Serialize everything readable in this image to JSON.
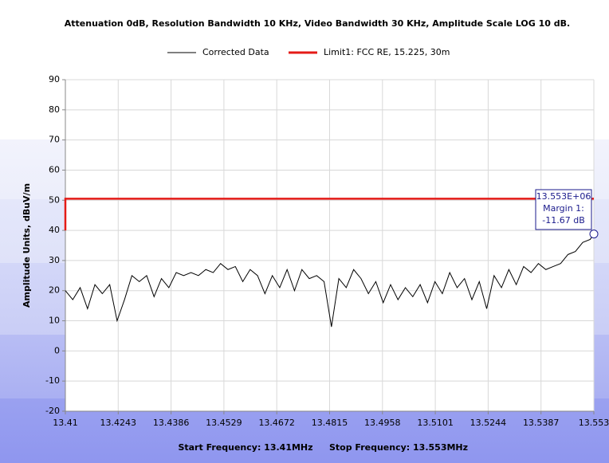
{
  "chart_data": {
    "type": "line",
    "title": "Attenuation 0dB, Resolution Bandwidth 10 KHz, Video Bandwidth 30 KHz, Amplitude Scale LOG 10 dB.",
    "ylabel": "Amplitude Units, dBuV/m",
    "footer": [
      "Start Frequency: 13.41MHz",
      "Stop Frequency: 13.553MHz"
    ],
    "annotation": [
      "13.553E+06",
      "Margin 1:",
      "-11.67 dB"
    ],
    "xlim": [
      13.41,
      13.553
    ],
    "xticks": [
      13.41,
      13.4243,
      13.4386,
      13.4529,
      13.4672,
      13.4815,
      13.4958,
      13.5101,
      13.5244,
      13.5387,
      13.553
    ],
    "ylim": [
      -20,
      90
    ],
    "yticks": [
      -20,
      -10,
      0,
      10,
      20,
      30,
      40,
      50,
      60,
      70,
      80,
      90
    ],
    "grid": true,
    "series": [
      {
        "name": "Corrected Data",
        "color": "#000000",
        "x": [
          13.41,
          13.412,
          13.414,
          13.416,
          13.418,
          13.42,
          13.422,
          13.424,
          13.426,
          13.428,
          13.43,
          13.432,
          13.434,
          13.436,
          13.438,
          13.44,
          13.442,
          13.444,
          13.446,
          13.448,
          13.45,
          13.452,
          13.454,
          13.456,
          13.458,
          13.46,
          13.462,
          13.464,
          13.466,
          13.468,
          13.47,
          13.472,
          13.474,
          13.476,
          13.478,
          13.48,
          13.482,
          13.484,
          13.486,
          13.488,
          13.49,
          13.492,
          13.494,
          13.496,
          13.498,
          13.5,
          13.502,
          13.504,
          13.506,
          13.508,
          13.51,
          13.512,
          13.514,
          13.516,
          13.518,
          13.52,
          13.522,
          13.524,
          13.526,
          13.528,
          13.53,
          13.532,
          13.534,
          13.536,
          13.538,
          13.54,
          13.542,
          13.544,
          13.546,
          13.548,
          13.55,
          13.552,
          13.553
        ],
        "values": [
          20,
          17,
          21,
          14,
          22,
          19,
          22,
          10,
          17,
          25,
          23,
          25,
          18,
          24,
          21,
          26,
          25,
          26,
          25,
          27,
          26,
          29,
          27,
          28,
          23,
          27,
          25,
          19,
          25,
          21,
          27,
          20,
          27,
          24,
          25,
          23,
          8,
          24,
          21,
          27,
          24,
          19,
          23,
          16,
          22,
          17,
          21,
          18,
          22,
          16,
          23,
          19,
          26,
          21,
          24,
          17,
          23,
          14,
          25,
          21,
          27,
          22,
          28,
          26,
          29,
          27,
          28,
          29,
          32,
          33,
          36,
          37,
          38.8
        ]
      },
      {
        "name": "Limit1: FCC RE, 15.225, 30m",
        "color": "#e41b17",
        "x": [
          13.41,
          13.41,
          13.553
        ],
        "values": [
          40,
          50.5,
          50.5
        ]
      }
    ]
  }
}
